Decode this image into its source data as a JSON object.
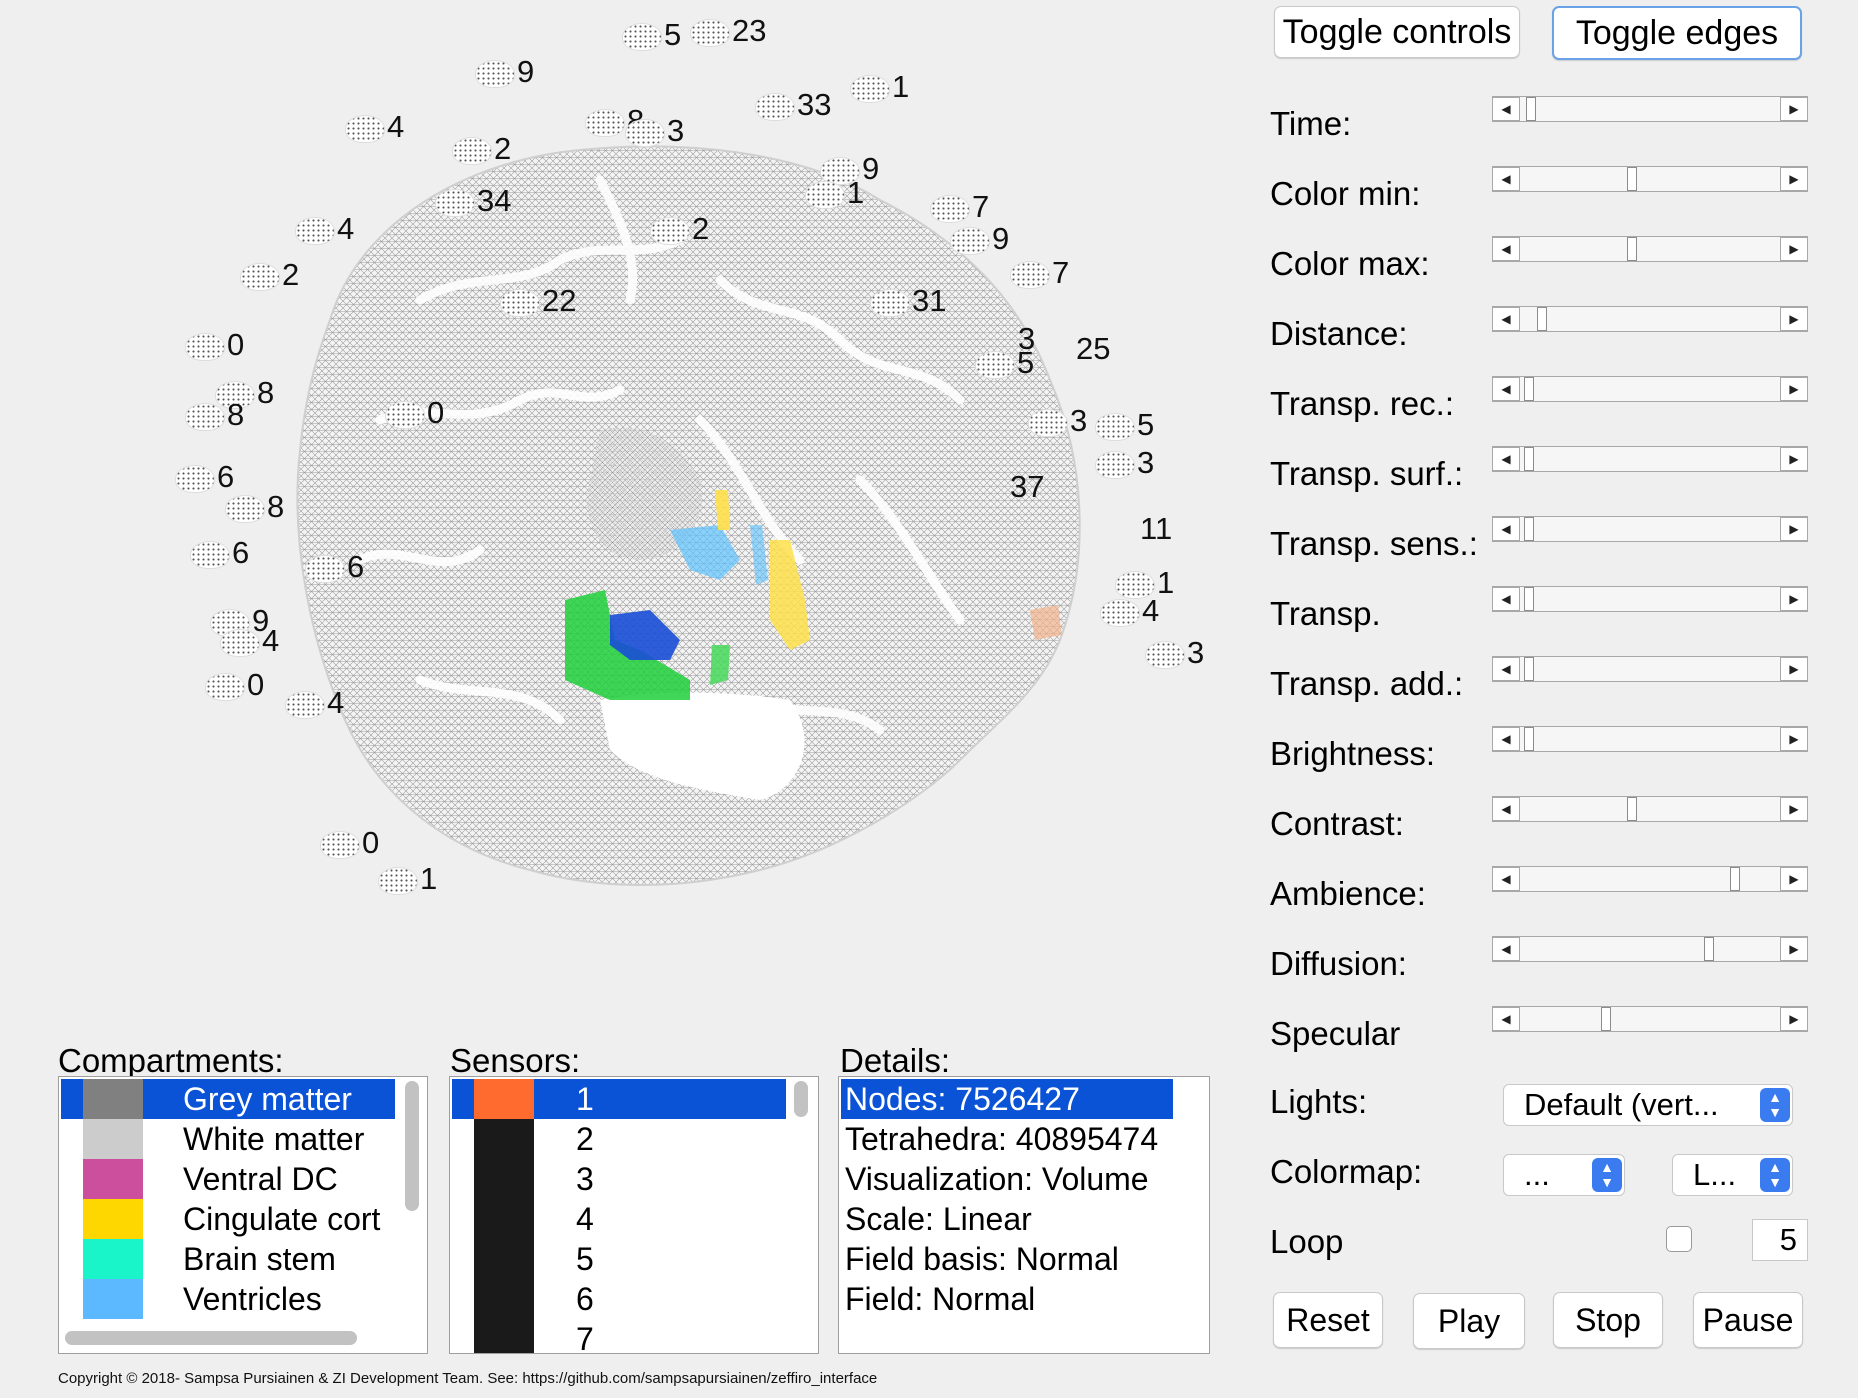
{
  "toolbar": {
    "toggle_controls": "Toggle controls",
    "toggle_edges": "Toggle edges"
  },
  "sliders": [
    {
      "label": "Time:",
      "value": 0.04
    },
    {
      "label": "Color min:",
      "value": 0.43
    },
    {
      "label": "Color max:",
      "value": 0.43
    },
    {
      "label": "Distance:",
      "value": 0.08
    },
    {
      "label": "Transp. rec.:",
      "value": 0.03
    },
    {
      "label": "Transp. surf.:",
      "value": 0.03
    },
    {
      "label": "Transp. sens.:",
      "value": 0.03
    },
    {
      "label": "Transp.",
      "value": 0.03
    },
    {
      "label": "Transp. add.:",
      "value": 0.03
    },
    {
      "label": "Brightness:",
      "value": 0.03
    },
    {
      "label": "Contrast:",
      "value": 0.43
    },
    {
      "label": "Ambience:",
      "value": 0.83
    },
    {
      "label": "Diffusion:",
      "value": 0.73
    },
    {
      "label": "Specular",
      "value": 0.33
    }
  ],
  "lights": {
    "label": "Lights:",
    "value": "Default (vert..."
  },
  "colormap": {
    "label": "Colormap:",
    "value1": "...",
    "value2": "L..."
  },
  "loop": {
    "label": "Loop",
    "checked": false,
    "count": "5"
  },
  "playback": {
    "reset": "Reset",
    "play": "Play",
    "stop": "Stop",
    "pause": "Pause"
  },
  "compartments": {
    "title": "Compartments:",
    "items": [
      {
        "name": "Grey matter",
        "color": "#808080",
        "selected": true
      },
      {
        "name": "White matter",
        "color": "#cccccc",
        "selected": false
      },
      {
        "name": "Ventral DC",
        "color": "#cc4f9e",
        "selected": false
      },
      {
        "name": "Cingulate cort",
        "color": "#ffd700",
        "selected": false
      },
      {
        "name": "Brain stem",
        "color": "#19f5c9",
        "selected": false
      },
      {
        "name": "Ventricles",
        "color": "#5cb8ff",
        "selected": false
      }
    ]
  },
  "sensors": {
    "title": "Sensors:",
    "items": [
      {
        "name": "1",
        "color": "#ff6a2f",
        "selected": true
      },
      {
        "name": "2",
        "color": "#1a1a1a",
        "selected": false
      },
      {
        "name": "3",
        "color": "#1a1a1a",
        "selected": false
      },
      {
        "name": "4",
        "color": "#1a1a1a",
        "selected": false
      },
      {
        "name": "5",
        "color": "#1a1a1a",
        "selected": false
      },
      {
        "name": "6",
        "color": "#1a1a1a",
        "selected": false
      },
      {
        "name": "7",
        "color": "#1a1a1a",
        "selected": false
      }
    ]
  },
  "details": {
    "title": "Details:",
    "items": [
      {
        "text": "Nodes: 7526427",
        "selected": true
      },
      {
        "text": "Tetrahedra: 40895474",
        "selected": false
      },
      {
        "text": "Visualization: Volume",
        "selected": false
      },
      {
        "text": "Scale: Linear",
        "selected": false
      },
      {
        "text": "Field basis: Normal",
        "selected": false
      },
      {
        "text": "Field: Normal",
        "selected": false
      }
    ]
  },
  "sensor_labels": [
    "5",
    "23",
    "9",
    "1",
    "33",
    "4",
    "8",
    "3",
    "2",
    "9",
    "1",
    "34",
    "7",
    "9",
    "2",
    "4",
    "2",
    "7",
    "22",
    "31",
    "0",
    "3",
    "25",
    "5",
    "8",
    "0",
    "3",
    "8",
    "5",
    "6",
    "3",
    "37",
    "8",
    "11",
    "6",
    "6",
    "1",
    "9",
    "4",
    "4",
    "0",
    "3",
    "4",
    "0",
    "1"
  ],
  "footer": "Copyright © 2018- Sampsa Pursiainen & ZI Development Team. See: https://github.com/sampsapursiainen/zeffiro_interface",
  "colors": {
    "selection": "#0a52d6",
    "accent_button_border": "#6aa2e8",
    "popup_stepper": "#3a7bf0"
  }
}
